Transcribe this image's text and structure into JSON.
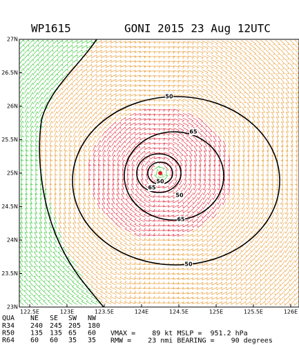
{
  "header": {
    "storm_id": "WP1615",
    "title": "GONI 2015 23 Aug 12UTC"
  },
  "map": {
    "lat_labels": [
      "27N",
      "26.5N",
      "26N",
      "25.5N",
      "25N",
      "24.5N",
      "24N",
      "23.5N",
      "23N"
    ],
    "lon_labels": [
      "122.5E",
      "123E",
      "123.5E",
      "124E",
      "124.5E",
      "125E",
      "125.5E",
      "126E"
    ],
    "contour_labels": [
      "50",
      "65",
      "50",
      "65",
      "50",
      "65",
      "50"
    ]
  },
  "table": {
    "header": [
      "QUA",
      "NE",
      "SE",
      "SW",
      "NW"
    ],
    "rows": [
      [
        "R34",
        "240",
        "245",
        "205",
        "180"
      ],
      [
        "R50",
        "135",
        "135",
        "65",
        "60"
      ],
      [
        "R64",
        "60",
        "60",
        "35",
        "35"
      ]
    ]
  },
  "stats": [
    "VMAX =    89 kt MSLP =  951.2 hPa",
    "RMW =    23 nmi BEARING =    90 degrees"
  ]
}
